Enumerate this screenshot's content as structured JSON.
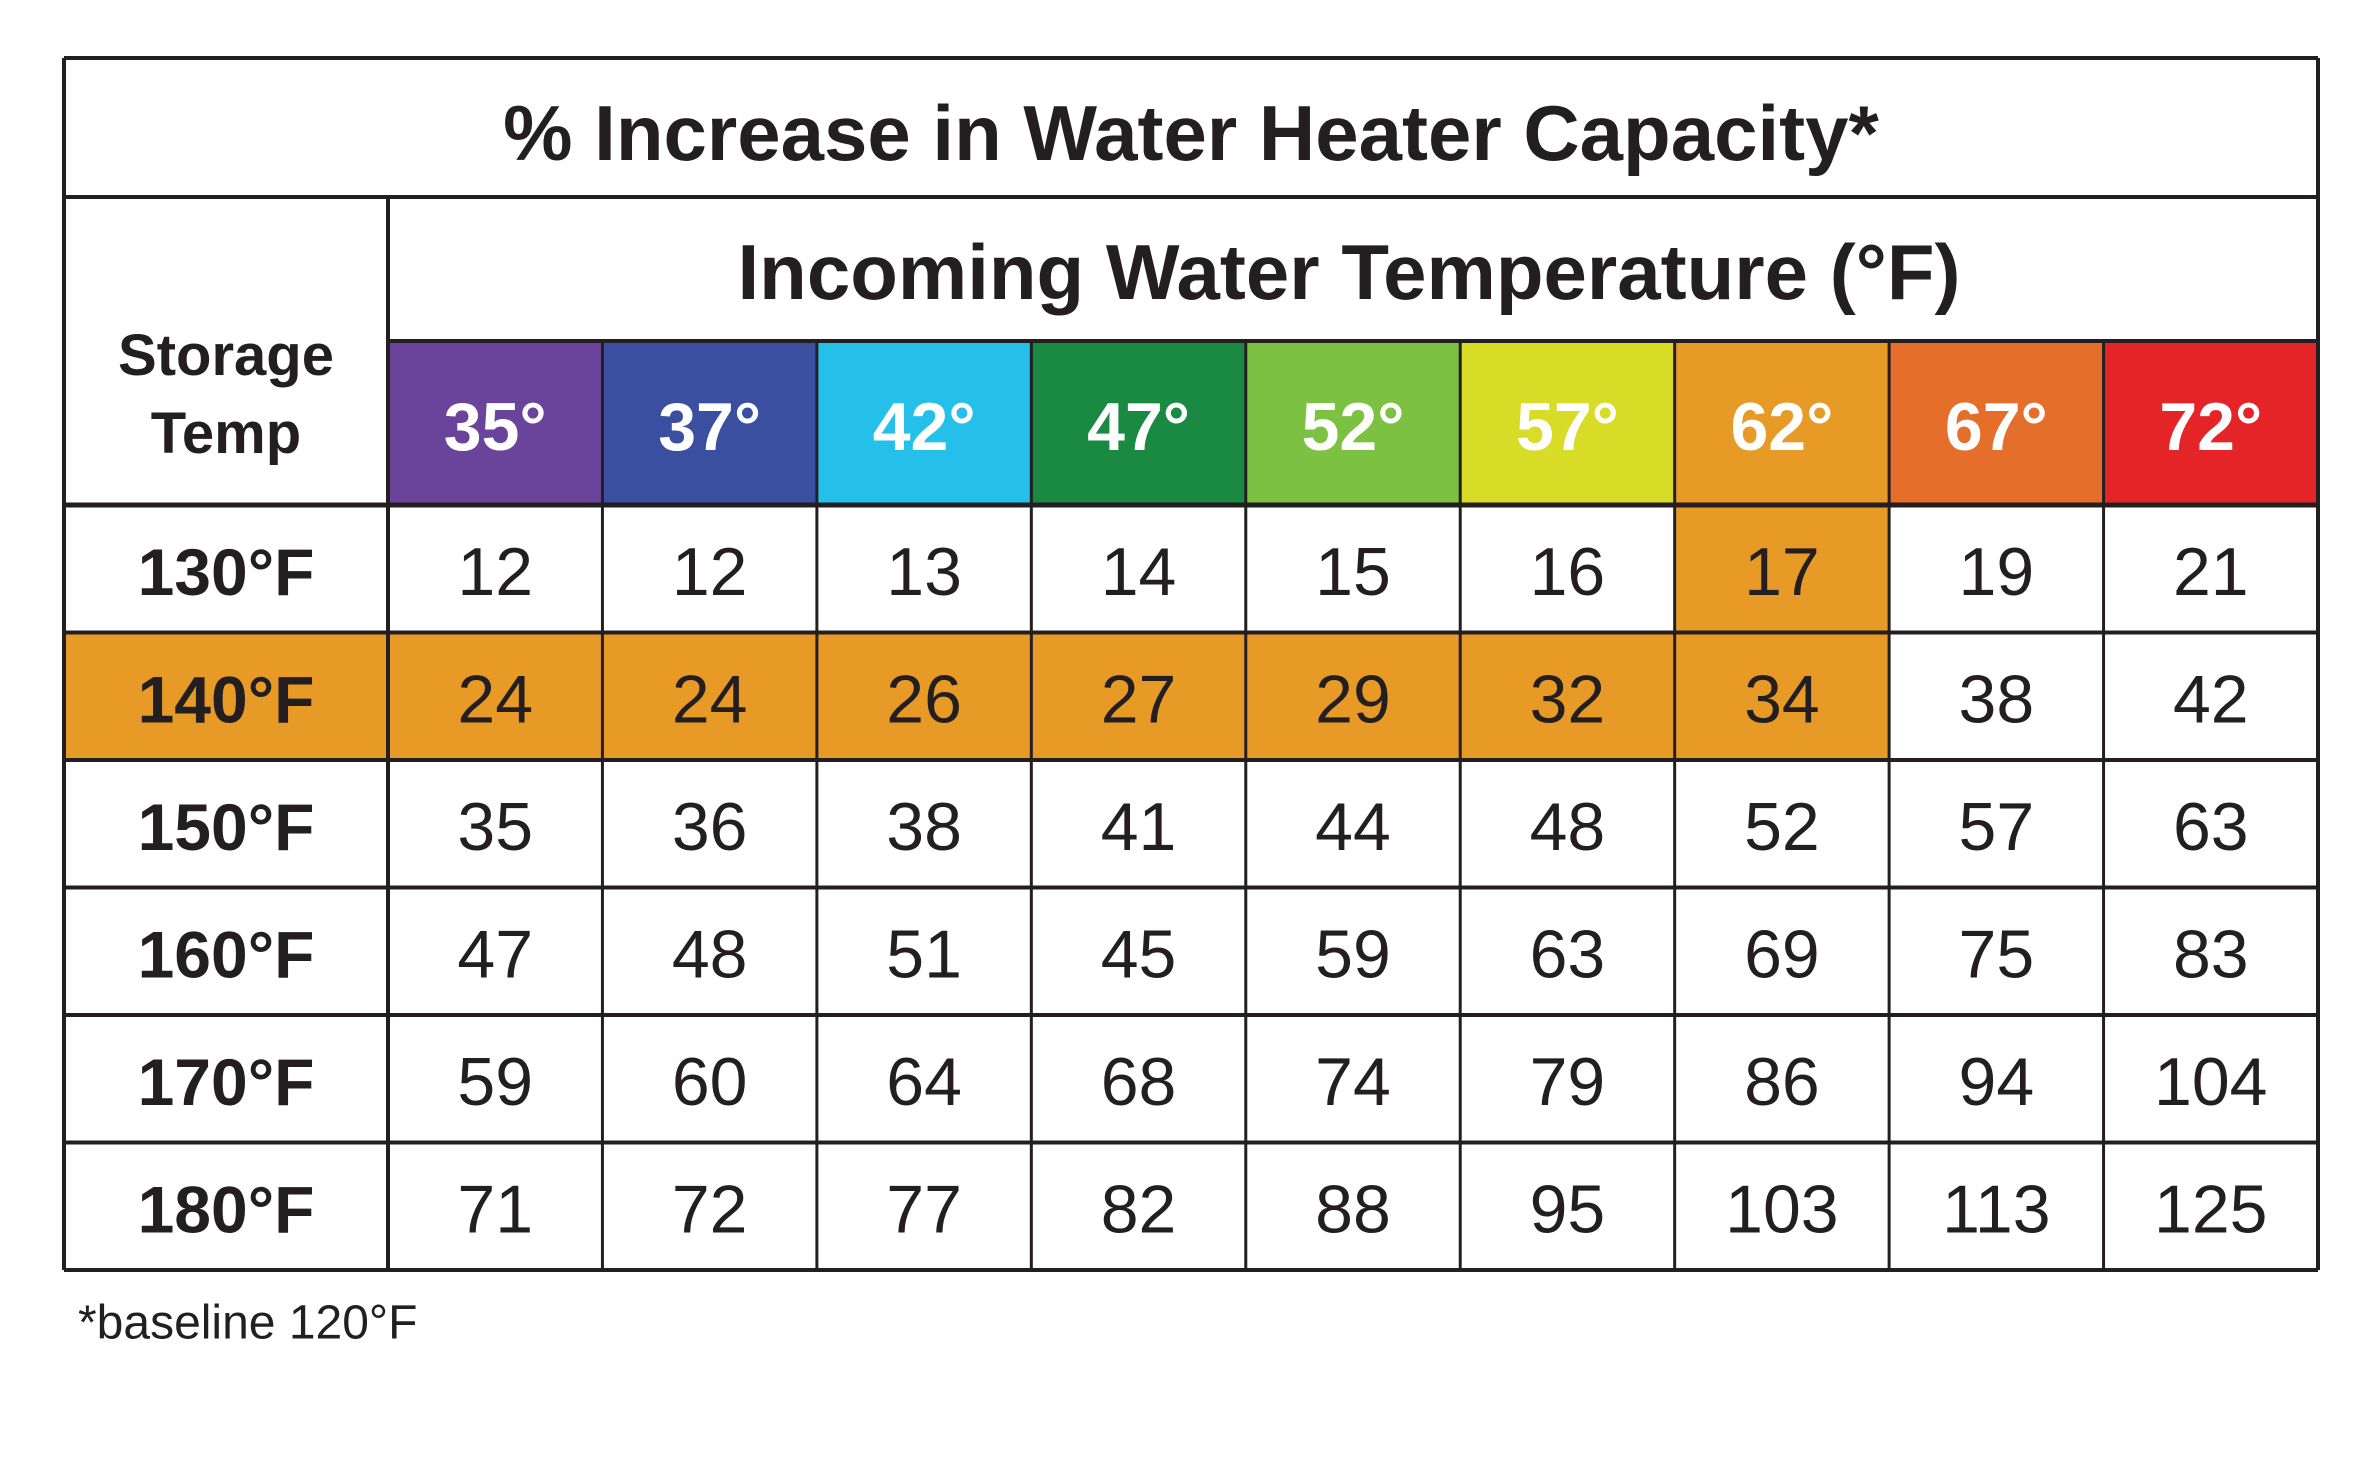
{
  "table": {
    "title": "% Increase in Water Heater Capacity*",
    "row_header": "Storage Temp",
    "column_group_header": "Incoming Water Temperature (°F)",
    "highlight_color": "#e89a26",
    "columns": [
      {
        "label": "35°",
        "color": "#6a449a"
      },
      {
        "label": "37°",
        "color": "#3a4fa0"
      },
      {
        "label": "42°",
        "color": "#24c0ea"
      },
      {
        "label": "47°",
        "color": "#1a8a43"
      },
      {
        "label": "52°",
        "color": "#7dc142"
      },
      {
        "label": "57°",
        "color": "#d8dc26"
      },
      {
        "label": "62°",
        "color": "#e89a26"
      },
      {
        "label": "67°",
        "color": "#e56e2a"
      },
      {
        "label": "72°",
        "color": "#e52428"
      }
    ],
    "rows": [
      {
        "label": "130°F",
        "values": [
          12,
          12,
          13,
          14,
          15,
          16,
          17,
          19,
          21
        ],
        "label_highlighted": false,
        "highlighted_columns": [
          6
        ]
      },
      {
        "label": "140°F",
        "values": [
          24,
          24,
          26,
          27,
          29,
          32,
          34,
          38,
          42
        ],
        "label_highlighted": true,
        "highlighted_columns": [
          0,
          1,
          2,
          3,
          4,
          5,
          6
        ]
      },
      {
        "label": "150°F",
        "values": [
          35,
          36,
          38,
          41,
          44,
          48,
          52,
          57,
          63
        ],
        "label_highlighted": false,
        "highlighted_columns": []
      },
      {
        "label": "160°F",
        "values": [
          47,
          48,
          51,
          45,
          59,
          63,
          69,
          75,
          83
        ],
        "label_highlighted": false,
        "highlighted_columns": []
      },
      {
        "label": "170°F",
        "values": [
          59,
          60,
          64,
          68,
          74,
          79,
          86,
          94,
          104
        ],
        "label_highlighted": false,
        "highlighted_columns": []
      },
      {
        "label": "180°F",
        "values": [
          71,
          72,
          77,
          82,
          88,
          95,
          103,
          113,
          125
        ],
        "label_highlighted": false,
        "highlighted_columns": []
      }
    ],
    "footnote": "*baseline 120°F"
  }
}
